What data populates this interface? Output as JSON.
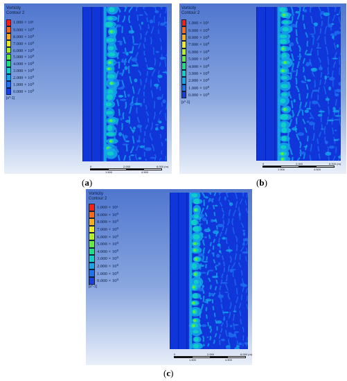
{
  "panels": [
    {
      "id": "a",
      "legend": {
        "title": "Vorticity",
        "subtitle": "Contour 2",
        "levels": [
          "1.000 × 10¹",
          "9.000 × 10⁰",
          "8.000 × 10⁰",
          "7.000 × 10⁰",
          "6.000 × 10⁰",
          "5.000 × 10⁰",
          "4.000 × 10⁰",
          "3.000 × 10⁰",
          "2.000 × 10⁰",
          "1.000 × 10⁰",
          "0.000 × 10⁰"
        ],
        "unit": "[s^-1]"
      },
      "scale": {
        "top": [
          "0",
          "2.000",
          "6.000 (m)"
        ],
        "bottom": [
          "1.500",
          "4.500"
        ]
      },
      "caption_letter": "a"
    },
    {
      "id": "b",
      "legend": {
        "title": "Vorticity",
        "subtitle": "Contour 2",
        "levels": [
          "1.000 × 10¹",
          "9.000 × 10⁰",
          "8.000 × 10⁰",
          "7.000 × 10⁰",
          "6.000 × 10⁰",
          "5.000 × 10⁰",
          "4.000 × 10⁰",
          "3.000 × 10⁰",
          "2.000 × 10⁰",
          "1.000 × 10⁰",
          "0.000 × 10⁰"
        ],
        "unit": "[s^-1]"
      },
      "scale": {
        "top": [
          "0",
          "2.000",
          "6.000 (m)"
        ],
        "bottom": [
          "1.500",
          "4.500"
        ]
      },
      "caption_letter": "b"
    },
    {
      "id": "c",
      "legend": {
        "title": "Vorticity",
        "subtitle": "Contour 2",
        "levels": [
          "1.000 × 10¹",
          "9.000 × 10⁰",
          "8.000 × 10⁰",
          "7.000 × 10⁰",
          "6.000 × 10⁰",
          "5.000 × 10⁰",
          "4.000 × 10⁰",
          "3.000 × 10⁰",
          "2.000 × 10⁰",
          "1.000 × 10⁰",
          "0.000 × 10⁰"
        ],
        "unit": "[s^-1]"
      },
      "scale": {
        "top": [
          "0",
          "2.000",
          "6.000 (m)"
        ],
        "bottom": [
          "1.500",
          "4.500"
        ]
      },
      "caption_letter": "c"
    }
  ],
  "colors": {
    "scale_ramp": [
      "#ff1e10",
      "#ff6a12",
      "#ffae18",
      "#f2ea20",
      "#b5f022",
      "#62ee3a",
      "#1fe07e",
      "#10d2c4",
      "#14a8ea",
      "#1c72f0",
      "#1a3ee2"
    ],
    "background": "#1035d8"
  },
  "caption_parens": {
    "open": "(",
    "close": ")"
  }
}
